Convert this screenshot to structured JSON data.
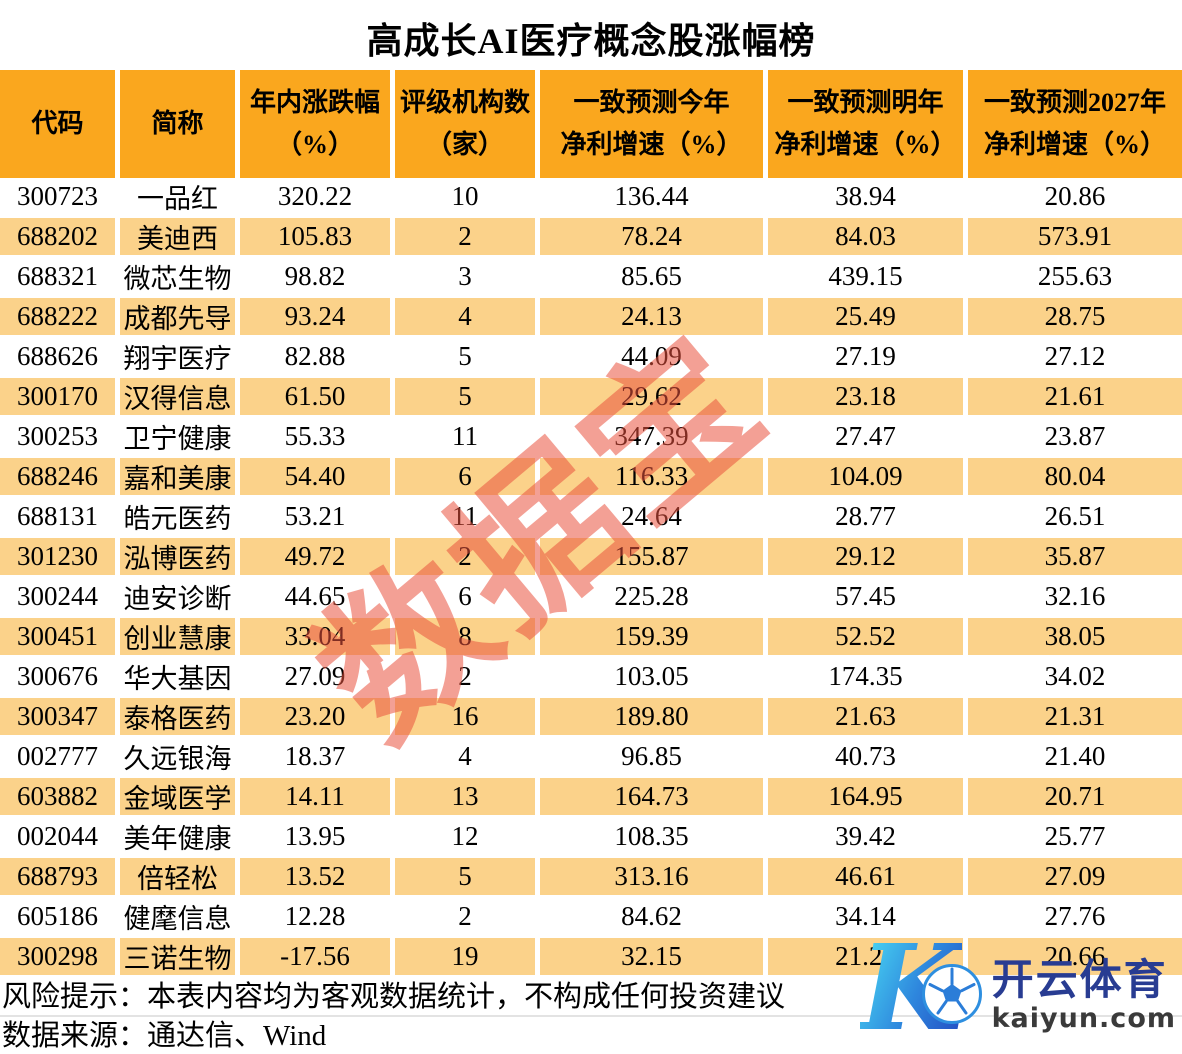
{
  "chart_data": {
    "type": "table",
    "title": "高成长AI医疗概念股涨幅榜",
    "columns": [
      {
        "line1": "代码",
        "line2": ""
      },
      {
        "line1": "简称",
        "line2": ""
      },
      {
        "line1": "年内涨跌幅",
        "line2": "（%）"
      },
      {
        "line1": "评级机构数",
        "line2": "（家）"
      },
      {
        "line1": "一致预测今年",
        "line2": "净利增速（%）"
      },
      {
        "line1": "一致预测明年",
        "line2": "净利增速（%）"
      },
      {
        "line1": "一致预测2027年",
        "line2": "净利增速（%）"
      }
    ],
    "rows": [
      [
        "300723",
        "一品红",
        "320.22",
        "10",
        "136.44",
        "38.94",
        "20.86"
      ],
      [
        "688202",
        "美迪西",
        "105.83",
        "2",
        "78.24",
        "84.03",
        "573.91"
      ],
      [
        "688321",
        "微芯生物",
        "98.82",
        "3",
        "85.65",
        "439.15",
        "255.63"
      ],
      [
        "688222",
        "成都先导",
        "93.24",
        "4",
        "24.13",
        "25.49",
        "28.75"
      ],
      [
        "688626",
        "翔宇医疗",
        "82.88",
        "5",
        "44.09",
        "27.19",
        "27.12"
      ],
      [
        "300170",
        "汉得信息",
        "61.50",
        "5",
        "29.62",
        "23.18",
        "21.61"
      ],
      [
        "300253",
        "卫宁健康",
        "55.33",
        "11",
        "347.39",
        "27.47",
        "23.87"
      ],
      [
        "688246",
        "嘉和美康",
        "54.40",
        "6",
        "116.33",
        "104.09",
        "80.04"
      ],
      [
        "688131",
        "皓元医药",
        "53.21",
        "11",
        "24.64",
        "28.77",
        "26.51"
      ],
      [
        "301230",
        "泓博医药",
        "49.72",
        "2",
        "155.87",
        "29.12",
        "35.87"
      ],
      [
        "300244",
        "迪安诊断",
        "44.65",
        "6",
        "225.28",
        "57.45",
        "32.16"
      ],
      [
        "300451",
        "创业慧康",
        "33.04",
        "8",
        "159.39",
        "52.52",
        "38.05"
      ],
      [
        "300676",
        "华大基因",
        "27.09",
        "2",
        "103.05",
        "174.35",
        "34.02"
      ],
      [
        "300347",
        "泰格医药",
        "23.20",
        "16",
        "189.80",
        "21.63",
        "21.31"
      ],
      [
        "002777",
        "久远银海",
        "18.37",
        "4",
        "96.85",
        "40.73",
        "21.40"
      ],
      [
        "603882",
        "金域医学",
        "14.11",
        "13",
        "164.73",
        "164.95",
        "20.71"
      ],
      [
        "002044",
        "美年健康",
        "13.95",
        "12",
        "108.35",
        "39.42",
        "25.77"
      ],
      [
        "688793",
        "倍轻松",
        "13.52",
        "5",
        "313.16",
        "46.61",
        "27.09"
      ],
      [
        "605186",
        "健麾信息",
        "12.28",
        "2",
        "84.62",
        "34.14",
        "27.76"
      ],
      [
        "300298",
        "三诺生物",
        "-17.56",
        "19",
        "32.15",
        "21.22",
        "20.66"
      ]
    ],
    "layout": {
      "striped": true,
      "stripe_pattern": "even rows highlighted",
      "grid": "white separators"
    }
  },
  "watermark": "数据宝",
  "footer": {
    "risk": "风险提示：本表内容均为客观数据统计，不构成任何投资建议",
    "source": "数据来源：通达信、Wind"
  },
  "logo": {
    "letter": "K",
    "name": "开云体育",
    "domain": "kaiyun.com"
  },
  "colors": {
    "header_bg": "#FAA71E",
    "row_alt_bg": "#FBD28A",
    "watermark_color": "rgba(233,82,62,0.55)",
    "logo_navy": "#283C92",
    "logo_gray": "#3A3A3A",
    "logo_gradient_start": "#49D8F3",
    "logo_gradient_end": "#2450C4"
  }
}
